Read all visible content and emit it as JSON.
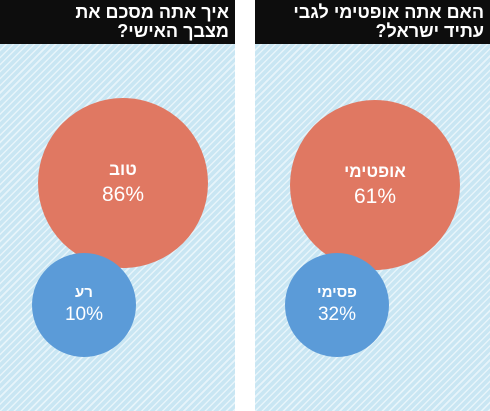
{
  "chart_data": [
    {
      "type": "bubble",
      "title_lines": [
        "איך אתה מסכם את",
        "מצבך האישי?"
      ],
      "series": [
        {
          "name": "טוב",
          "value": 86,
          "value_label": "86%",
          "color": "#e07862"
        },
        {
          "name": "רע",
          "value": 10,
          "value_label": "10%",
          "color": "#5b9bd8"
        }
      ]
    },
    {
      "type": "bubble",
      "title_lines": [
        "האם אתה אופטימי לגבי",
        "עתיד ישראל?"
      ],
      "series": [
        {
          "name": "אופטימי",
          "value": 61,
          "value_label": "61%",
          "color": "#e07862"
        },
        {
          "name": "פסימי",
          "value": 32,
          "value_label": "32%",
          "color": "#5b9bd8"
        }
      ]
    }
  ],
  "colors": {
    "title_bg": "#0d0d0d",
    "panel_bg": "#c9e6f3"
  }
}
